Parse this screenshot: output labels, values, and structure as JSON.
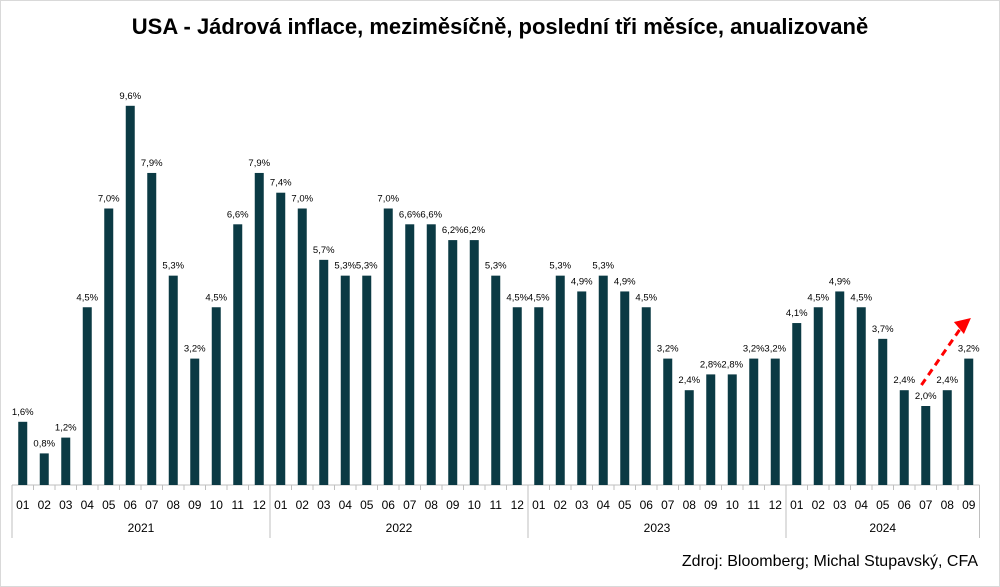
{
  "title": "USA - Jádrová inflace, meziměsíčně, poslední tři měsíce, anualizovaně",
  "source": "Zdroj: Bloomberg; Michal Stupavský, CFA",
  "colors": {
    "bar": "#0b3a44",
    "arrow": "#ff0000",
    "axis": "#bfbfbf",
    "text": "#000000"
  },
  "chart_data": {
    "type": "bar",
    "grid": false,
    "legend": "none",
    "ylim": [
      0,
      10
    ],
    "groups": [
      {
        "label": "2021",
        "months": [
          "01",
          "02",
          "03",
          "04",
          "05",
          "06",
          "07",
          "08",
          "09",
          "10",
          "11",
          "12"
        ]
      },
      {
        "label": "2022",
        "months": [
          "01",
          "02",
          "03",
          "04",
          "05",
          "06",
          "07",
          "08",
          "09",
          "10",
          "11",
          "12"
        ]
      },
      {
        "label": "2023",
        "months": [
          "01",
          "02",
          "03",
          "04",
          "05",
          "06",
          "07",
          "08",
          "09",
          "10",
          "11",
          "12"
        ]
      },
      {
        "label": "2024",
        "months": [
          "01",
          "02",
          "03",
          "04",
          "05",
          "06",
          "07",
          "08",
          "09"
        ]
      }
    ],
    "values": [
      1.6,
      0.8,
      1.2,
      4.5,
      7.0,
      9.6,
      7.9,
      5.3,
      3.2,
      4.5,
      6.6,
      7.9,
      7.4,
      7.0,
      5.7,
      5.3,
      5.3,
      7.0,
      6.6,
      6.6,
      6.2,
      6.2,
      5.3,
      4.5,
      4.5,
      5.3,
      4.9,
      5.3,
      4.9,
      4.5,
      3.2,
      2.4,
      2.8,
      2.8,
      3.2,
      3.2,
      4.1,
      4.5,
      4.9,
      4.5,
      3.7,
      2.4,
      2.0,
      2.4,
      3.2
    ],
    "data_labels": [
      "1,6%",
      "0,8%",
      "1,2%",
      "4,5%",
      "7,0%",
      "9,6%",
      "7,9%",
      "5,3%",
      "3,2%",
      "4,5%",
      "6,6%",
      "7,9%",
      "7,4%",
      "7,0%",
      "5,7%",
      "5,3%",
      "5,3%",
      "7,0%",
      "6,6%",
      "6,6%",
      "6,2%",
      "6,2%",
      "5,3%",
      "4,5%",
      "4,5%",
      "5,3%",
      "4,9%",
      "5,3%",
      "4,9%",
      "4,5%",
      "3,2%",
      "2,4%",
      "2,8%",
      "2,8%",
      "3,2%",
      "3,2%",
      "4,1%",
      "4,5%",
      "4,9%",
      "4,5%",
      "3,7%",
      "2,4%",
      "2,0%",
      "2,4%",
      "3,2%"
    ],
    "annotation": {
      "type": "dashed-arrow",
      "direction": "up-right",
      "near_category": "2024-08/09"
    }
  }
}
